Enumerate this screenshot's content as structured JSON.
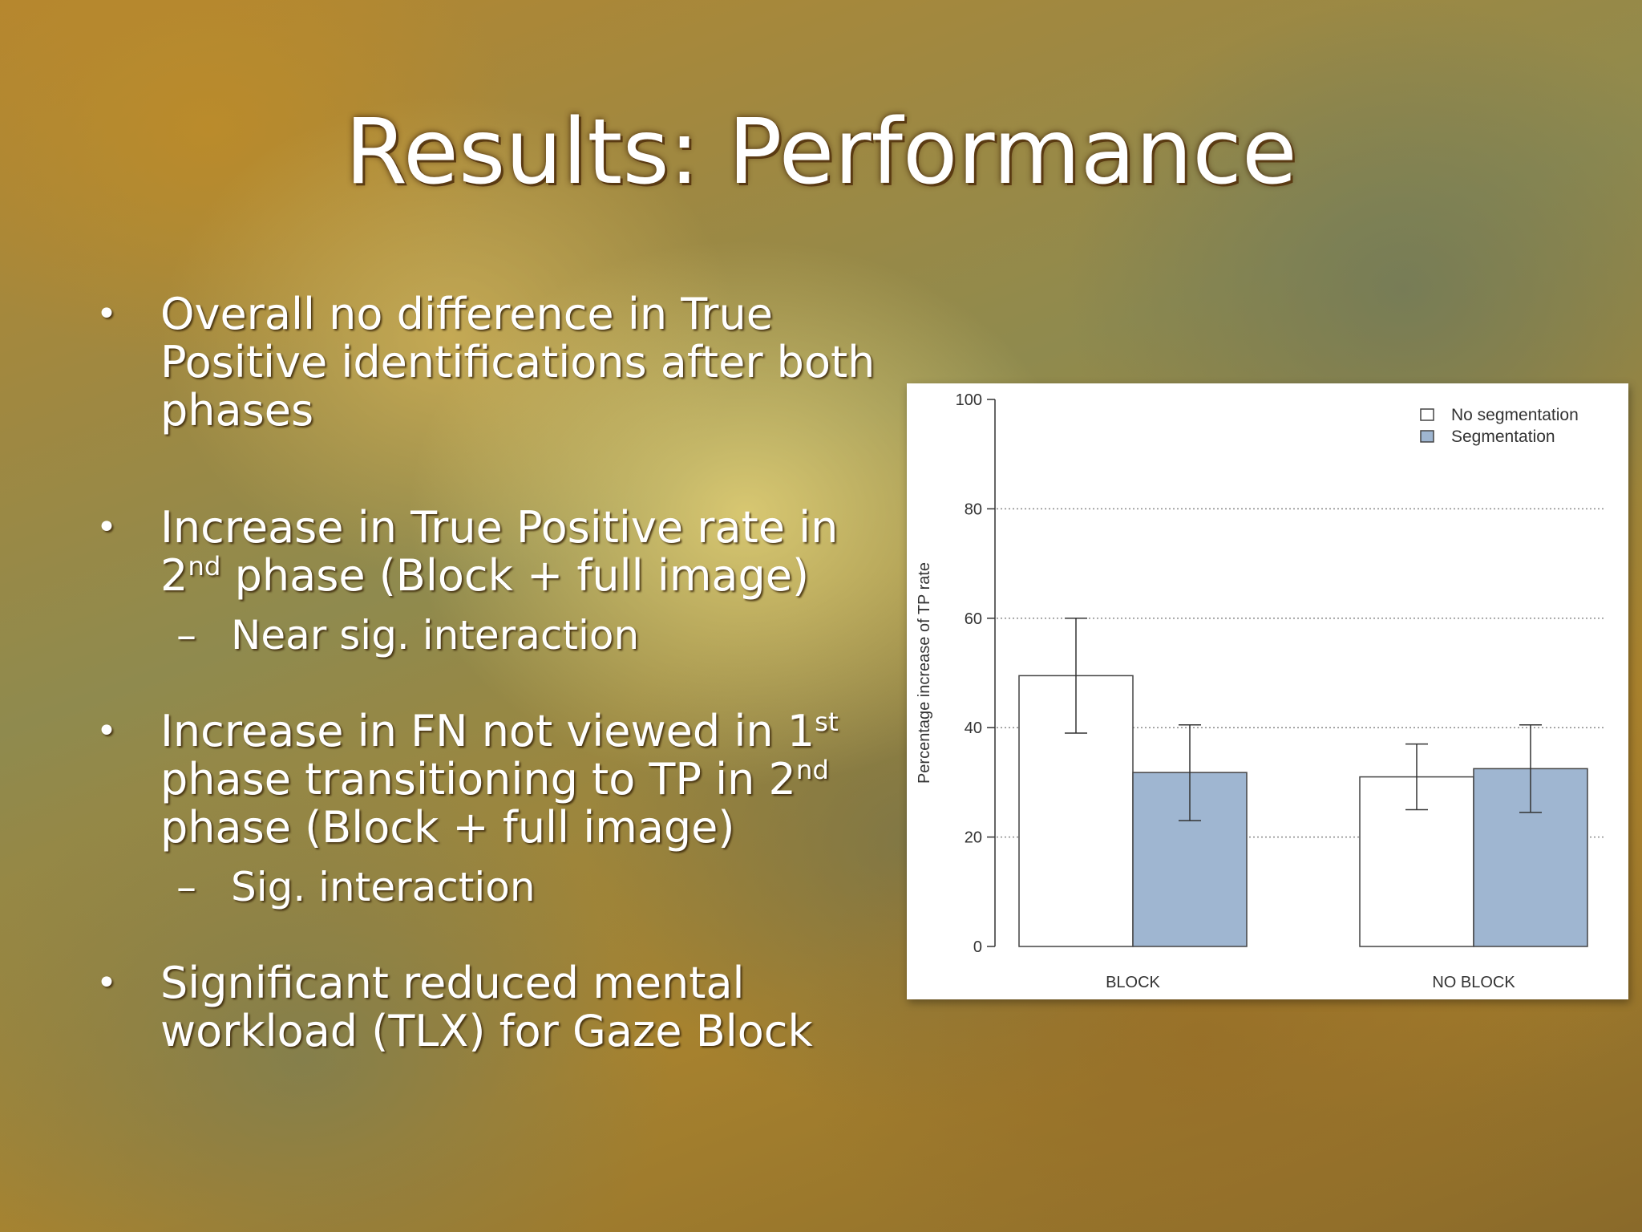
{
  "slide": {
    "title": "Results: Performance",
    "bullets": [
      {
        "text": "Overall no difference in True Positive identifications after both phases"
      },
      {
        "text_parts": [
          "Increase in True Positive rate in 2",
          "nd",
          " phase (Block + full image)"
        ],
        "sub": "Near sig. interaction"
      },
      {
        "text_parts": [
          "Increase in FN not viewed in 1",
          "st",
          " phase transitioning to TP in 2",
          "nd",
          " phase (Block + full image)"
        ],
        "sub": "Sig. interaction"
      },
      {
        "text": "Significant reduced mental workload (TLX) for Gaze Block"
      }
    ],
    "bullet_glyph": "•",
    "sub_glyph": "–"
  },
  "chart_data": {
    "type": "bar",
    "categories": [
      "BLOCK",
      "NO BLOCK"
    ],
    "series": [
      {
        "name": "No segmentation",
        "values": [
          49.5,
          31
        ],
        "error_low": [
          39,
          25
        ],
        "error_high": [
          60,
          37
        ],
        "color": "#ffffff"
      },
      {
        "name": "Segmentation",
        "values": [
          31.8,
          32.5
        ],
        "error_low": [
          23,
          24.5
        ],
        "error_high": [
          40.5,
          40.5
        ],
        "color": "#9fb6d1"
      }
    ],
    "ylabel": "Percentage increase of TP rate",
    "ylim": [
      0,
      100
    ],
    "yticks": [
      0,
      20,
      40,
      60,
      80,
      100
    ],
    "grid": true,
    "legend": "top-right"
  }
}
